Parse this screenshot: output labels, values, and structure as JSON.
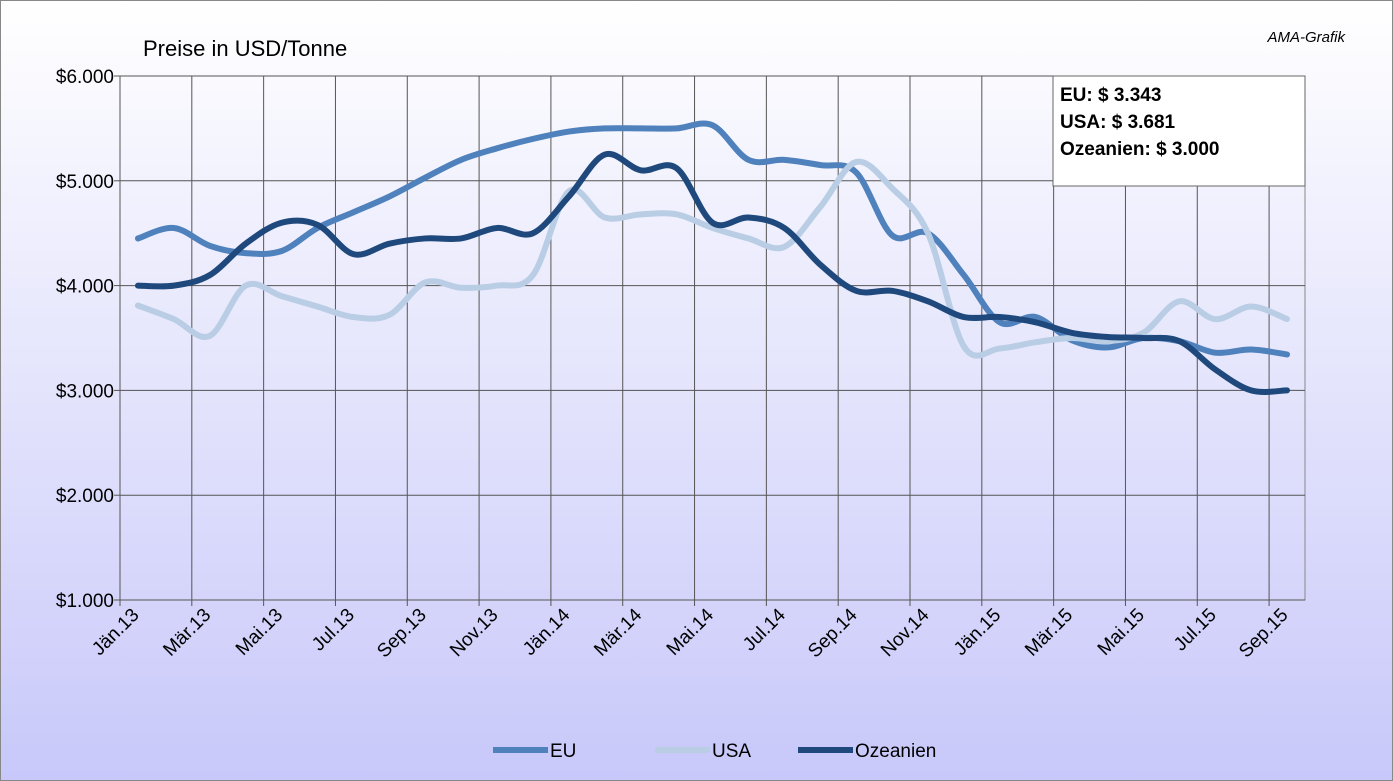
{
  "chart_data": {
    "type": "line",
    "title": "Preise in USD/Tonne",
    "source": "AMA-Grafik",
    "annotation": [
      "EU: $ 3.343",
      "USA: $ 3.681",
      "Ozeanien: $ 3.000"
    ],
    "categories": [
      "Jän.13",
      null,
      "Mär.13",
      null,
      "Mai.13",
      null,
      "Jul.13",
      null,
      "Sep.13",
      null,
      "Nov.13",
      null,
      "Jän.14",
      null,
      "Mär.14",
      null,
      "Mai.14",
      null,
      "Jul.14",
      null,
      "Sep.14",
      null,
      "Nov.14",
      null,
      "Jän.15",
      null,
      "Mär.15",
      null,
      "Mai.15",
      null,
      "Jul.15",
      null,
      "Sep.15"
    ],
    "series": [
      {
        "name": "EU",
        "color": "#4f81bd",
        "values": [
          4450,
          4550,
          4380,
          4310,
          4330,
          4550,
          4700,
          4850,
          5030,
          5200,
          5310,
          5400,
          5470,
          5500,
          5500,
          5500,
          5530,
          5200,
          5200,
          5150,
          5080,
          4480,
          4500,
          4100,
          3650,
          3700,
          3480,
          3410,
          3500,
          3470,
          3360,
          3390,
          3343
        ]
      },
      {
        "name": "USA",
        "color": "#b9cde5",
        "values": [
          3810,
          3680,
          3520,
          4000,
          3900,
          3800,
          3700,
          3720,
          4030,
          3980,
          4000,
          4100,
          4900,
          4650,
          4680,
          4680,
          4550,
          4450,
          4370,
          4750,
          5180,
          4930,
          4500,
          3420,
          3400,
          3460,
          3500,
          3470,
          3550,
          3850,
          3680,
          3800,
          3681
        ]
      },
      {
        "name": "Ozeanien",
        "color": "#1f497d",
        "values": [
          4000,
          4000,
          4100,
          4400,
          4600,
          4580,
          4300,
          4400,
          4450,
          4450,
          4550,
          4500,
          4850,
          5250,
          5100,
          5120,
          4600,
          4650,
          4550,
          4200,
          3950,
          3950,
          3850,
          3700,
          3700,
          3650,
          3550,
          3510,
          3500,
          3470,
          3200,
          3000,
          3000
        ]
      }
    ],
    "ylim": [
      1000,
      6000
    ],
    "yticks": [
      {
        "value": 1000,
        "label": "$1.000"
      },
      {
        "value": 2000,
        "label": "$2.000"
      },
      {
        "value": 3000,
        "label": "$3.000"
      },
      {
        "value": 4000,
        "label": "$4.000"
      },
      {
        "value": 5000,
        "label": "$5.000"
      },
      {
        "value": 6000,
        "label": "$6.000"
      }
    ],
    "grid": true,
    "legend": "bottom"
  }
}
